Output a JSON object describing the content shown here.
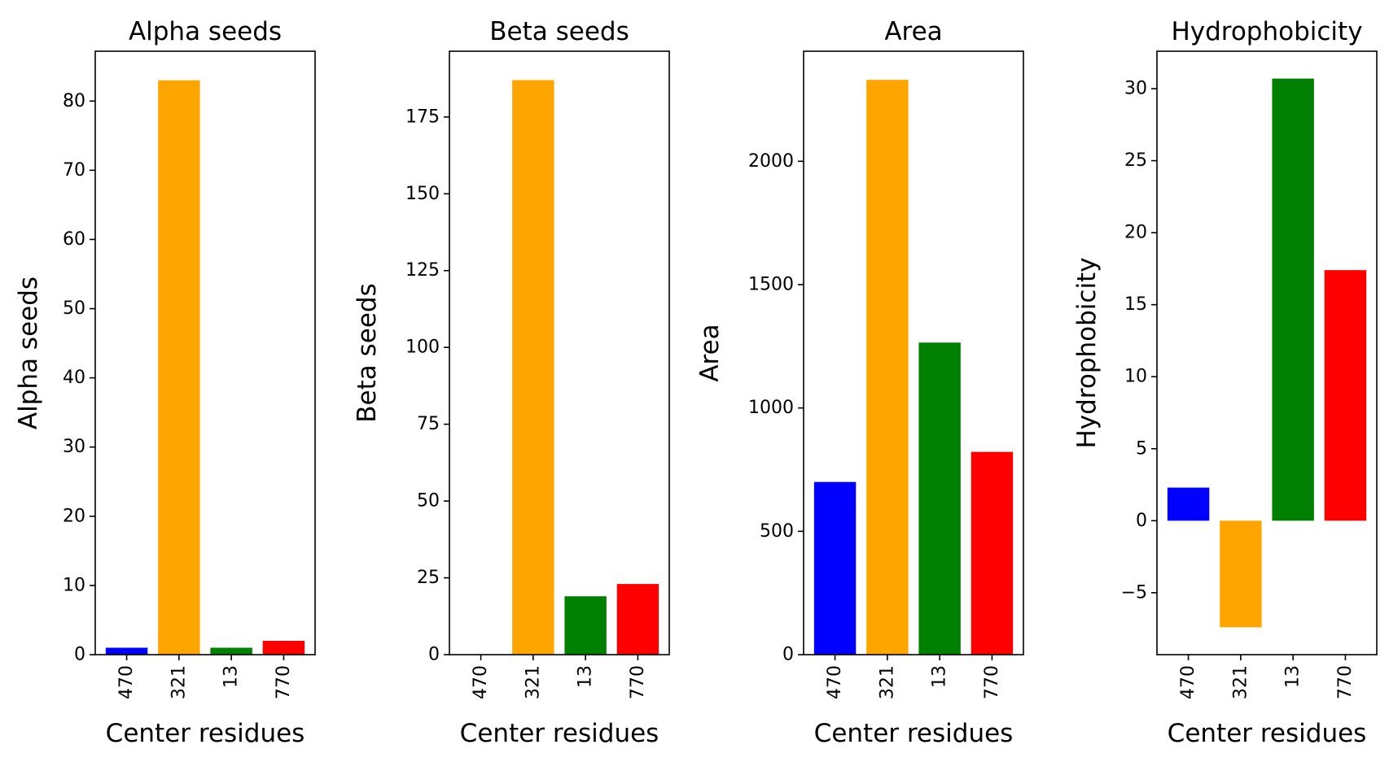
{
  "chart_data": [
    {
      "type": "bar",
      "title": "Alpha seeds",
      "xlabel": "Center residues",
      "ylabel": "Alpha seeds",
      "categories": [
        "470",
        "321",
        "13",
        "770"
      ],
      "values": [
        1,
        83,
        1,
        2
      ],
      "colors": [
        "#0000ff",
        "#ffa500",
        "#008000",
        "#ff0000"
      ],
      "ylim": [
        0,
        87.2
      ],
      "yticks": [
        0,
        10,
        20,
        30,
        40,
        50,
        60,
        70,
        80
      ],
      "ytick_labels": [
        "0",
        "10",
        "20",
        "30",
        "40",
        "50",
        "60",
        "70",
        "80"
      ]
    },
    {
      "type": "bar",
      "title": "Beta seeds",
      "xlabel": "Center residues",
      "ylabel": "Beta seeds",
      "categories": [
        "470",
        "321",
        "13",
        "770"
      ],
      "values": [
        0,
        187,
        19,
        23
      ],
      "colors": [
        "#0000ff",
        "#ffa500",
        "#008000",
        "#ff0000"
      ],
      "ylim": [
        0,
        196.4
      ],
      "yticks": [
        0,
        25,
        50,
        75,
        100,
        125,
        150,
        175
      ],
      "ytick_labels": [
        "0",
        "25",
        "50",
        "75",
        "100",
        "125",
        "150",
        "175"
      ]
    },
    {
      "type": "bar",
      "title": "Area",
      "xlabel": "Center residues",
      "ylabel": "Area",
      "categories": [
        "470",
        "321",
        "13",
        "770"
      ],
      "values": [
        700,
        2330,
        1265,
        822
      ],
      "colors": [
        "#0000ff",
        "#ffa500",
        "#008000",
        "#ff0000"
      ],
      "ylim": [
        0,
        2446
      ],
      "yticks": [
        0,
        500,
        1000,
        1500,
        2000
      ],
      "ytick_labels": [
        "0",
        "500",
        "1000",
        "1500",
        "2000"
      ]
    },
    {
      "type": "bar",
      "title": "Hydrophobicity",
      "xlabel": "Center residues",
      "ylabel": "Hydrophobicity",
      "categories": [
        "470",
        "321",
        "13",
        "770"
      ],
      "values": [
        2.3,
        -7.4,
        30.7,
        17.4
      ],
      "colors": [
        "#0000ff",
        "#ffa500",
        "#008000",
        "#ff0000"
      ],
      "ylim": [
        -9.3,
        32.6
      ],
      "yticks": [
        -5,
        0,
        5,
        10,
        15,
        20,
        25,
        30
      ],
      "ytick_labels": [
        "−5",
        "0",
        "5",
        "10",
        "15",
        "20",
        "25",
        "30"
      ]
    }
  ]
}
